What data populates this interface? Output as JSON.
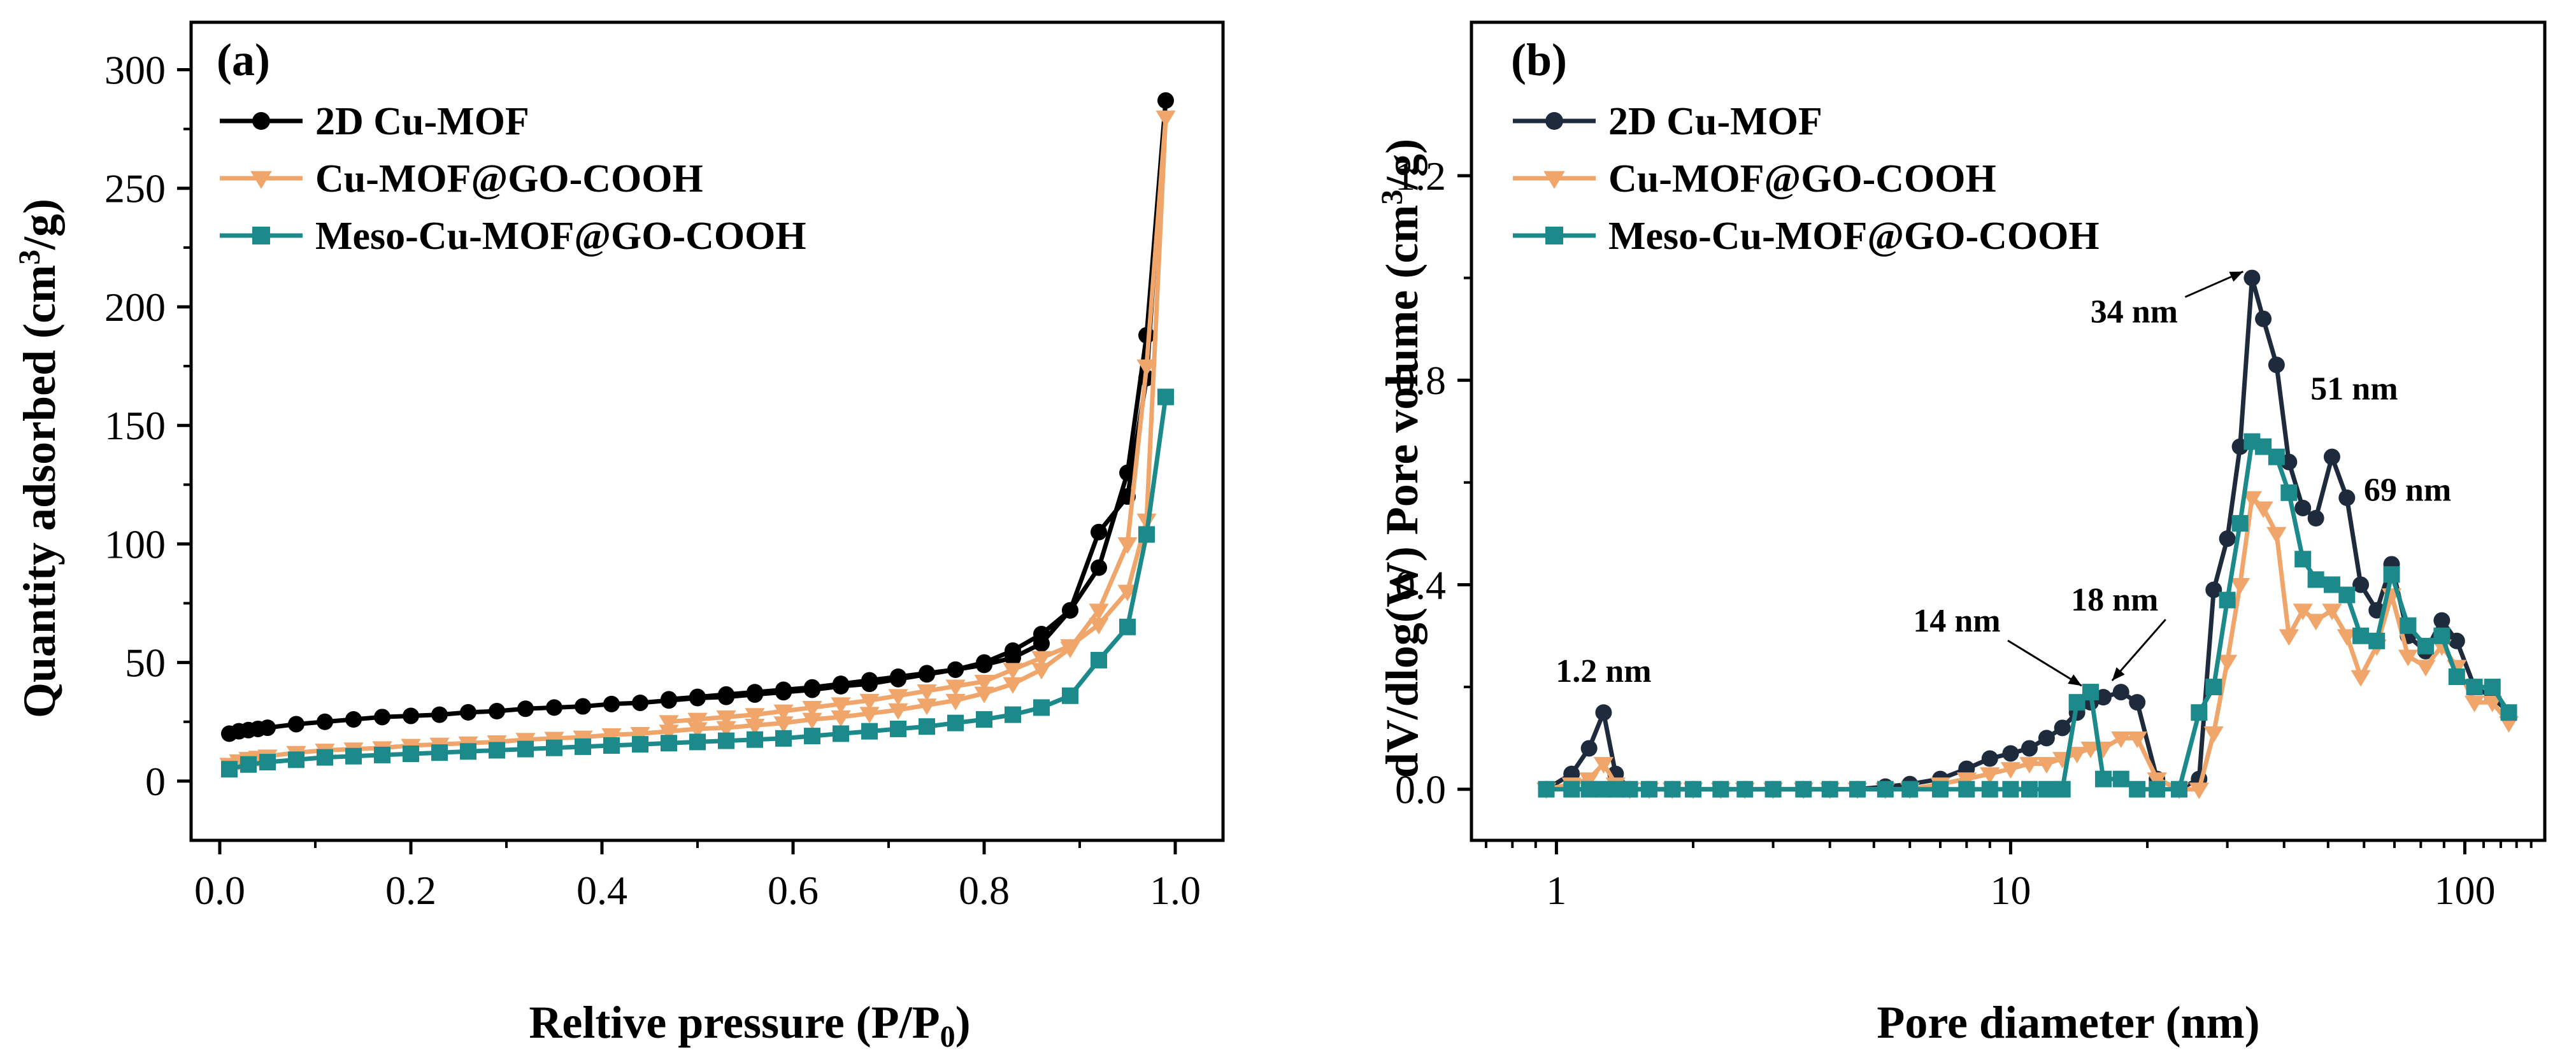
{
  "chart_data": [
    {
      "type": "line",
      "panel_label": "(a)",
      "xlabel": "Reltive pressure (P/P",
      "xlabel_sub": "0",
      "xlabel_end": ")",
      "ylabel": "Quantity adsorbed (cm",
      "ylabel_sup": "3",
      "ylabel_end": "/g)",
      "xlim": [
        -0.03,
        1.05
      ],
      "ylim": [
        -25,
        320
      ],
      "xticks": [
        0.0,
        0.2,
        0.4,
        0.6,
        0.8,
        1.0
      ],
      "xtick_labels": [
        "0.0",
        "0.2",
        "0.4",
        "0.6",
        "0.8",
        "1.0"
      ],
      "yticks": [
        0,
        50,
        100,
        150,
        200,
        250,
        300
      ],
      "ytick_labels": [
        "0",
        "50",
        "100",
        "150",
        "200",
        "250",
        "300"
      ],
      "legend_position": "top-left",
      "series": [
        {
          "name": "2D Cu-MOF",
          "color": "#000000",
          "marker": "circle",
          "x": [
            0.01,
            0.02,
            0.03,
            0.04,
            0.05,
            0.08,
            0.11,
            0.14,
            0.17,
            0.2,
            0.23,
            0.26,
            0.29,
            0.32,
            0.35,
            0.38,
            0.41,
            0.44,
            0.47,
            0.5,
            0.53,
            0.56,
            0.59,
            0.62,
            0.65,
            0.68,
            0.71,
            0.74,
            0.77,
            0.8,
            0.83,
            0.86,
            0.89,
            0.92,
            0.95,
            0.97,
            0.99,
            0.97,
            0.95,
            0.92,
            0.89,
            0.86,
            0.83,
            0.8,
            0.77,
            0.74,
            0.71,
            0.68,
            0.65,
            0.62,
            0.59,
            0.56,
            0.53,
            0.5,
            0.47
          ],
          "y": [
            20,
            21,
            21.5,
            22,
            22.5,
            24,
            25,
            26,
            27,
            27.5,
            28,
            29,
            29.5,
            30.5,
            31,
            31.5,
            32.5,
            33,
            34,
            35,
            35.5,
            36.5,
            37.5,
            38.5,
            40,
            41,
            43,
            45,
            47,
            50,
            55,
            62,
            72,
            90,
            130,
            188,
            287,
            170,
            120,
            105,
            72,
            58,
            52,
            49,
            47,
            45.5,
            44,
            42.5,
            41,
            39.5,
            38.5,
            37.5,
            36.5,
            35.5,
            34.5
          ]
        },
        {
          "name": "Cu-MOF@GO-COOH",
          "color": "#F0A56A",
          "marker": "triangle-down",
          "x": [
            0.01,
            0.02,
            0.03,
            0.04,
            0.05,
            0.08,
            0.11,
            0.14,
            0.17,
            0.2,
            0.23,
            0.26,
            0.29,
            0.32,
            0.35,
            0.38,
            0.41,
            0.44,
            0.47,
            0.5,
            0.53,
            0.56,
            0.59,
            0.62,
            0.65,
            0.68,
            0.71,
            0.74,
            0.77,
            0.8,
            0.83,
            0.86,
            0.89,
            0.92,
            0.95,
            0.97,
            0.99,
            0.97,
            0.95,
            0.92,
            0.89,
            0.86,
            0.83,
            0.8,
            0.77,
            0.74,
            0.71,
            0.68,
            0.65,
            0.62,
            0.59,
            0.56,
            0.53,
            0.5,
            0.47
          ],
          "y": [
            7,
            8.5,
            9.5,
            10,
            10.5,
            12,
            13,
            13.5,
            14,
            15,
            15.5,
            16,
            16.5,
            17.5,
            18,
            18.5,
            19.5,
            20,
            21,
            22,
            22.5,
            23.5,
            24.5,
            26,
            27,
            28.5,
            30,
            32,
            34,
            37,
            41,
            47,
            56,
            72,
            100,
            175,
            280,
            110,
            80,
            66,
            57,
            52,
            47,
            42,
            40,
            38,
            36,
            34,
            32.5,
            31,
            29.5,
            28,
            27,
            26,
            25
          ]
        },
        {
          "name": "Meso-Cu-MOF@GO-COOH",
          "color": "#1C8A8A",
          "marker": "square",
          "x": [
            0.01,
            0.03,
            0.05,
            0.08,
            0.11,
            0.14,
            0.17,
            0.2,
            0.23,
            0.26,
            0.29,
            0.32,
            0.35,
            0.38,
            0.41,
            0.44,
            0.47,
            0.5,
            0.53,
            0.56,
            0.59,
            0.62,
            0.65,
            0.68,
            0.71,
            0.74,
            0.77,
            0.8,
            0.83,
            0.86,
            0.89,
            0.92,
            0.95,
            0.97,
            0.99
          ],
          "y": [
            5,
            7,
            8,
            9,
            10,
            10.5,
            11,
            11.5,
            12,
            12.5,
            13,
            13.5,
            14,
            14.5,
            15,
            15.5,
            16,
            16.5,
            17,
            17.5,
            18,
            19,
            20,
            21,
            22,
            23,
            24.5,
            26,
            28,
            31,
            36,
            51,
            65,
            104,
            162
          ]
        }
      ]
    },
    {
      "type": "line",
      "panel_label": "(b)",
      "xscale": "log",
      "xlabel": "Pore diameter (nm)",
      "ylabel": "dV/dlog(W) Pore volume (cm",
      "ylabel_sup": "3",
      "ylabel_end": "/g)",
      "xlim": [
        0.65,
        150
      ],
      "ylim": [
        -0.1,
        1.5
      ],
      "xticks": [
        1,
        10,
        100
      ],
      "xtick_labels": [
        "1",
        "10",
        "100"
      ],
      "yticks": [
        0,
        0.4,
        0.8,
        1.2
      ],
      "ytick_labels": [
        "0.0",
        "0.4",
        "0.8",
        "1.2"
      ],
      "legend_position": "top-left",
      "annotations": [
        "1.2 nm",
        "14 nm",
        "18 nm",
        "34 nm",
        "51 nm",
        "69 nm"
      ],
      "annotation_points": [
        {
          "text": "1.2 nm",
          "x": 1.27,
          "y": 0.15,
          "arrow": false
        },
        {
          "text": "14 nm",
          "x": 15.0,
          "y": 0.19,
          "arrow": true
        },
        {
          "text": "18 nm",
          "x": 17.5,
          "y": 0.2,
          "arrow": true
        },
        {
          "text": "34 nm",
          "x": 34.0,
          "y": 1.0,
          "arrow": true
        },
        {
          "text": "51 nm",
          "x": 51.0,
          "y": 0.65,
          "arrow": false
        },
        {
          "text": "69 nm",
          "x": 69.0,
          "y": 0.44,
          "arrow": false
        }
      ],
      "series": [
        {
          "name": "2D Cu-MOF",
          "color": "#1E2B3C",
          "marker": "circle",
          "x": [
            0.95,
            1.08,
            1.18,
            1.27,
            1.35,
            1.45,
            1.6,
            1.8,
            2.0,
            2.3,
            2.6,
            3.0,
            3.5,
            4.0,
            4.6,
            5.3,
            6.0,
            7.0,
            8.0,
            9.0,
            10.0,
            11.0,
            12.0,
            13.0,
            14.0,
            15.0,
            16.0,
            17.5,
            19.0,
            21.0,
            23.5,
            26.0,
            28.0,
            30.0,
            32.0,
            34.0,
            36.0,
            38.5,
            41.0,
            44.0,
            47.0,
            51.0,
            55.0,
            59.0,
            64.0,
            69.0,
            75.0,
            82.0,
            89.0,
            96.0,
            105.0,
            115.0,
            125.0
          ],
          "y": [
            0.0,
            0.03,
            0.08,
            0.15,
            0.03,
            0.0,
            0.0,
            0.0,
            0.0,
            0.0,
            0.0,
            0.0,
            0.0,
            0.0,
            0.0,
            0.005,
            0.01,
            0.02,
            0.04,
            0.06,
            0.07,
            0.08,
            0.1,
            0.12,
            0.15,
            0.17,
            0.18,
            0.19,
            0.17,
            0.02,
            0.0,
            0.02,
            0.39,
            0.49,
            0.67,
            1.0,
            0.92,
            0.83,
            0.64,
            0.55,
            0.53,
            0.65,
            0.57,
            0.4,
            0.35,
            0.44,
            0.3,
            0.27,
            0.33,
            0.29,
            0.2,
            0.18,
            0.15
          ]
        },
        {
          "name": "Cu-MOF@GO-COOH",
          "color": "#F0A56A",
          "marker": "triangle-down",
          "x": [
            0.95,
            1.08,
            1.18,
            1.27,
            1.35,
            1.45,
            1.6,
            1.8,
            2.0,
            2.3,
            2.6,
            3.0,
            3.5,
            4.0,
            4.6,
            5.3,
            6.0,
            7.0,
            8.0,
            9.0,
            10.0,
            11.0,
            12.0,
            13.0,
            14.0,
            15.0,
            16.0,
            17.5,
            19.0,
            21.0,
            23.5,
            26.0,
            28.0,
            30.0,
            32.0,
            34.0,
            36.0,
            38.5,
            41.0,
            44.0,
            47.0,
            51.0,
            55.0,
            59.0,
            64.0,
            69.0,
            75.0,
            82.0,
            89.0,
            96.0,
            105.0,
            115.0,
            125.0
          ],
          "y": [
            0.0,
            0.01,
            0.02,
            0.05,
            0.01,
            0.0,
            0.0,
            0.0,
            0.0,
            0.0,
            0.0,
            0.0,
            0.0,
            0.0,
            0.0,
            0.0,
            0.0,
            0.01,
            0.02,
            0.03,
            0.04,
            0.05,
            0.05,
            0.06,
            0.07,
            0.08,
            0.08,
            0.1,
            0.1,
            0.02,
            0.0,
            0.0,
            0.11,
            0.25,
            0.4,
            0.57,
            0.55,
            0.5,
            0.3,
            0.35,
            0.33,
            0.35,
            0.3,
            0.22,
            0.28,
            0.38,
            0.26,
            0.24,
            0.28,
            0.24,
            0.17,
            0.17,
            0.13
          ]
        },
        {
          "name": "Meso-Cu-MOF@GO-COOH",
          "color": "#1C8A8A",
          "marker": "square",
          "x": [
            0.95,
            1.08,
            1.18,
            1.27,
            1.35,
            1.45,
            1.6,
            1.8,
            2.0,
            2.3,
            2.6,
            3.0,
            3.5,
            4.0,
            4.6,
            5.3,
            6.0,
            7.0,
            8.0,
            9.0,
            10.0,
            11.0,
            12.0,
            13.0,
            14.0,
            15.0,
            16.0,
            17.5,
            19.0,
            21.0,
            23.5,
            26.0,
            28.0,
            30.0,
            32.0,
            34.0,
            36.0,
            38.5,
            41.0,
            44.0,
            47.0,
            51.0,
            55.0,
            59.0,
            64.0,
            69.0,
            75.0,
            82.0,
            89.0,
            96.0,
            105.0,
            115.0,
            125.0
          ],
          "y": [
            0.0,
            0.0,
            0.0,
            0.0,
            0.0,
            0.0,
            0.0,
            0.0,
            0.0,
            0.0,
            0.0,
            0.0,
            0.0,
            0.0,
            0.0,
            0.0,
            0.0,
            0.0,
            0.0,
            0.0,
            0.0,
            0.0,
            0.0,
            0.0,
            0.17,
            0.19,
            0.02,
            0.02,
            0.0,
            0.0,
            0.0,
            0.15,
            0.2,
            0.37,
            0.52,
            0.68,
            0.67,
            0.65,
            0.58,
            0.45,
            0.41,
            0.4,
            0.38,
            0.3,
            0.29,
            0.42,
            0.32,
            0.28,
            0.3,
            0.22,
            0.2,
            0.2,
            0.15
          ]
        }
      ]
    }
  ]
}
